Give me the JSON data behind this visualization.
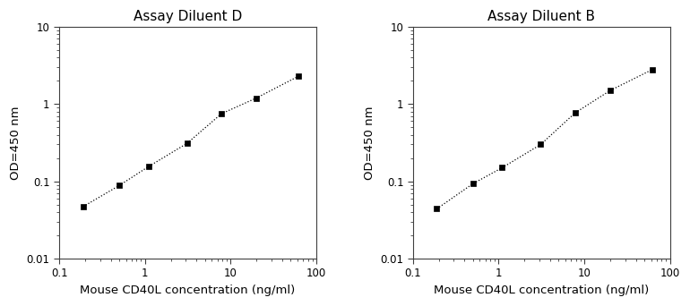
{
  "plot1": {
    "title": "Assay Diluent D",
    "x": [
      0.19,
      0.5,
      1.1,
      3.1,
      7.8,
      20,
      62
    ],
    "y": [
      0.047,
      0.088,
      0.155,
      0.31,
      0.75,
      1.2,
      2.3
    ]
  },
  "plot2": {
    "title": "Assay Diluent B",
    "x": [
      0.19,
      0.5,
      1.1,
      3.1,
      7.8,
      20,
      62
    ],
    "y": [
      0.044,
      0.093,
      0.15,
      0.3,
      0.77,
      1.5,
      2.8
    ]
  },
  "xlabel": "Mouse CD40L concentration (ng/ml)",
  "ylabel": "OD=450 nm",
  "xlim": [
    0.1,
    100
  ],
  "ylim": [
    0.01,
    10
  ],
  "line_color": "#000000",
  "marker": "s",
  "markersize": 4,
  "linewidth": 0.9,
  "linestyle": "dotted",
  "title_fontsize": 11,
  "label_fontsize": 9.5,
  "tick_fontsize": 8.5,
  "background_color": "#ffffff"
}
